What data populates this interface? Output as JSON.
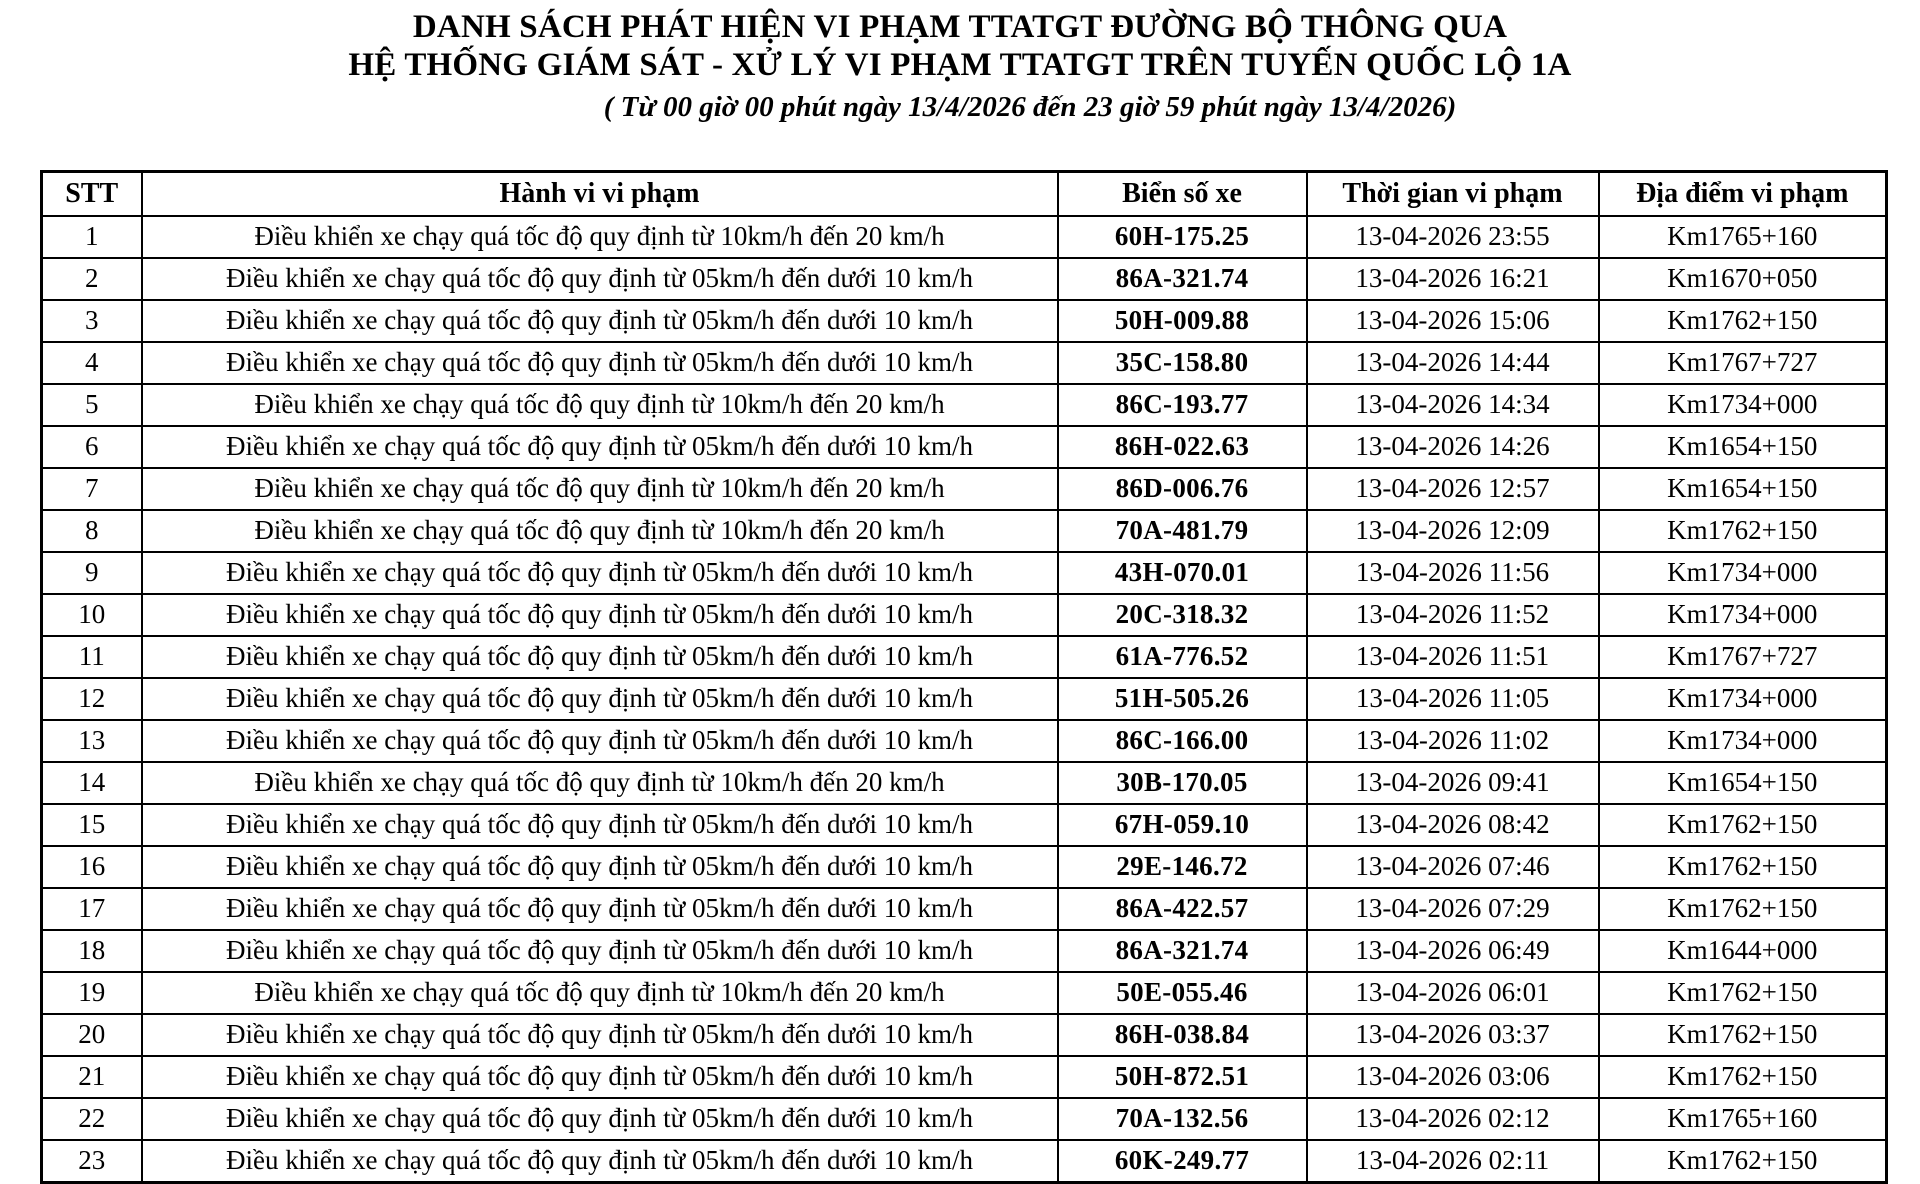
{
  "header": {
    "title_line1": "DANH SÁCH PHÁT HIỆN VI PHẠM TTATGT ĐƯỜNG BỘ THÔNG QUA",
    "title_line2": "HỆ THỐNG GIÁM SÁT - XỬ LÝ VI PHẠM TTATGT TRÊN TUYẾN QUỐC LỘ 1A",
    "subtitle": "( Từ 00 giờ 00 phút ngày 13/4/2026 đến 23 giờ 59 phút ngày 13/4/2026)"
  },
  "table": {
    "headers": [
      "STT",
      "Hành vi vi phạm",
      "Biển số xe",
      "Thời gian vi phạm",
      "Địa điểm vi phạm"
    ],
    "rows": [
      {
        "stt": "1",
        "violation": "Điều khiển xe chạy quá tốc độ quy định từ 10km/h đến 20 km/h",
        "plate": "60H-175.25",
        "time": "13-04-2026 23:55",
        "location": "Km1765+160"
      },
      {
        "stt": "2",
        "violation": "Điều khiển xe chạy quá tốc độ quy định từ 05km/h đến dưới 10 km/h",
        "plate": "86A-321.74",
        "time": "13-04-2026 16:21",
        "location": "Km1670+050"
      },
      {
        "stt": "3",
        "violation": "Điều khiển xe chạy quá tốc độ quy định từ 05km/h đến dưới 10 km/h",
        "plate": "50H-009.88",
        "time": "13-04-2026 15:06",
        "location": "Km1762+150"
      },
      {
        "stt": "4",
        "violation": "Điều khiển xe chạy quá tốc độ quy định từ 05km/h đến dưới 10 km/h",
        "plate": "35C-158.80",
        "time": "13-04-2026 14:44",
        "location": "Km1767+727"
      },
      {
        "stt": "5",
        "violation": "Điều khiển xe chạy quá tốc độ quy định từ 10km/h đến 20 km/h",
        "plate": "86C-193.77",
        "time": "13-04-2026 14:34",
        "location": "Km1734+000"
      },
      {
        "stt": "6",
        "violation": "Điều khiển xe chạy quá tốc độ quy định từ 05km/h đến dưới 10 km/h",
        "plate": "86H-022.63",
        "time": "13-04-2026 14:26",
        "location": "Km1654+150"
      },
      {
        "stt": "7",
        "violation": "Điều khiển xe chạy quá tốc độ quy định từ 10km/h đến 20 km/h",
        "plate": "86D-006.76",
        "time": "13-04-2026 12:57",
        "location": "Km1654+150"
      },
      {
        "stt": "8",
        "violation": "Điều khiển xe chạy quá tốc độ quy định từ 10km/h đến 20 km/h",
        "plate": "70A-481.79",
        "time": "13-04-2026 12:09",
        "location": "Km1762+150"
      },
      {
        "stt": "9",
        "violation": "Điều khiển xe chạy quá tốc độ quy định từ 05km/h đến dưới 10 km/h",
        "plate": "43H-070.01",
        "time": "13-04-2026 11:56",
        "location": "Km1734+000"
      },
      {
        "stt": "10",
        "violation": "Điều khiển xe chạy quá tốc độ quy định từ 05km/h đến dưới 10 km/h",
        "plate": "20C-318.32",
        "time": "13-04-2026 11:52",
        "location": "Km1734+000"
      },
      {
        "stt": "11",
        "violation": "Điều khiển xe chạy quá tốc độ quy định từ 05km/h đến dưới 10 km/h",
        "plate": "61A-776.52",
        "time": "13-04-2026 11:51",
        "location": "Km1767+727"
      },
      {
        "stt": "12",
        "violation": "Điều khiển xe chạy quá tốc độ quy định từ 05km/h đến dưới 10 km/h",
        "plate": "51H-505.26",
        "time": "13-04-2026 11:05",
        "location": "Km1734+000"
      },
      {
        "stt": "13",
        "violation": "Điều khiển xe chạy quá tốc độ quy định từ 05km/h đến dưới 10 km/h",
        "plate": "86C-166.00",
        "time": "13-04-2026 11:02",
        "location": "Km1734+000"
      },
      {
        "stt": "14",
        "violation": "Điều khiển xe chạy quá tốc độ quy định từ 10km/h đến 20 km/h",
        "plate": "30B-170.05",
        "time": "13-04-2026 09:41",
        "location": "Km1654+150"
      },
      {
        "stt": "15",
        "violation": "Điều khiển xe chạy quá tốc độ quy định từ 05km/h đến dưới 10 km/h",
        "plate": "67H-059.10",
        "time": "13-04-2026 08:42",
        "location": "Km1762+150"
      },
      {
        "stt": "16",
        "violation": "Điều khiển xe chạy quá tốc độ quy định từ 05km/h đến dưới 10 km/h",
        "plate": "29E-146.72",
        "time": "13-04-2026 07:46",
        "location": "Km1762+150"
      },
      {
        "stt": "17",
        "violation": "Điều khiển xe chạy quá tốc độ quy định từ 05km/h đến dưới 10 km/h",
        "plate": "86A-422.57",
        "time": "13-04-2026 07:29",
        "location": "Km1762+150"
      },
      {
        "stt": "18",
        "violation": "Điều khiển xe chạy quá tốc độ quy định từ 05km/h đến dưới 10 km/h",
        "plate": "86A-321.74",
        "time": "13-04-2026 06:49",
        "location": "Km1644+000"
      },
      {
        "stt": "19",
        "violation": "Điều khiển xe chạy quá tốc độ quy định từ 10km/h đến 20 km/h",
        "plate": "50E-055.46",
        "time": "13-04-2026 06:01",
        "location": "Km1762+150"
      },
      {
        "stt": "20",
        "violation": "Điều khiển xe chạy quá tốc độ quy định từ 05km/h đến dưới 10 km/h",
        "plate": "86H-038.84",
        "time": "13-04-2026 03:37",
        "location": "Km1762+150"
      },
      {
        "stt": "21",
        "violation": "Điều khiển xe chạy quá tốc độ quy định từ 05km/h đến dưới 10 km/h",
        "plate": "50H-872.51",
        "time": "13-04-2026 03:06",
        "location": "Km1762+150"
      },
      {
        "stt": "22",
        "violation": "Điều khiển xe chạy quá tốc độ quy định từ 05km/h đến dưới 10 km/h",
        "plate": "70A-132.56",
        "time": "13-04-2026 02:12",
        "location": "Km1765+160"
      },
      {
        "stt": "23",
        "violation": "Điều khiển xe chạy quá tốc độ quy định từ 05km/h đến dưới 10 km/h",
        "plate": "60K-249.77",
        "time": "13-04-2026 02:11",
        "location": "Km1762+150"
      }
    ]
  },
  "colors": {
    "text": "#000000",
    "border": "#000000",
    "background": "#ffffff"
  }
}
